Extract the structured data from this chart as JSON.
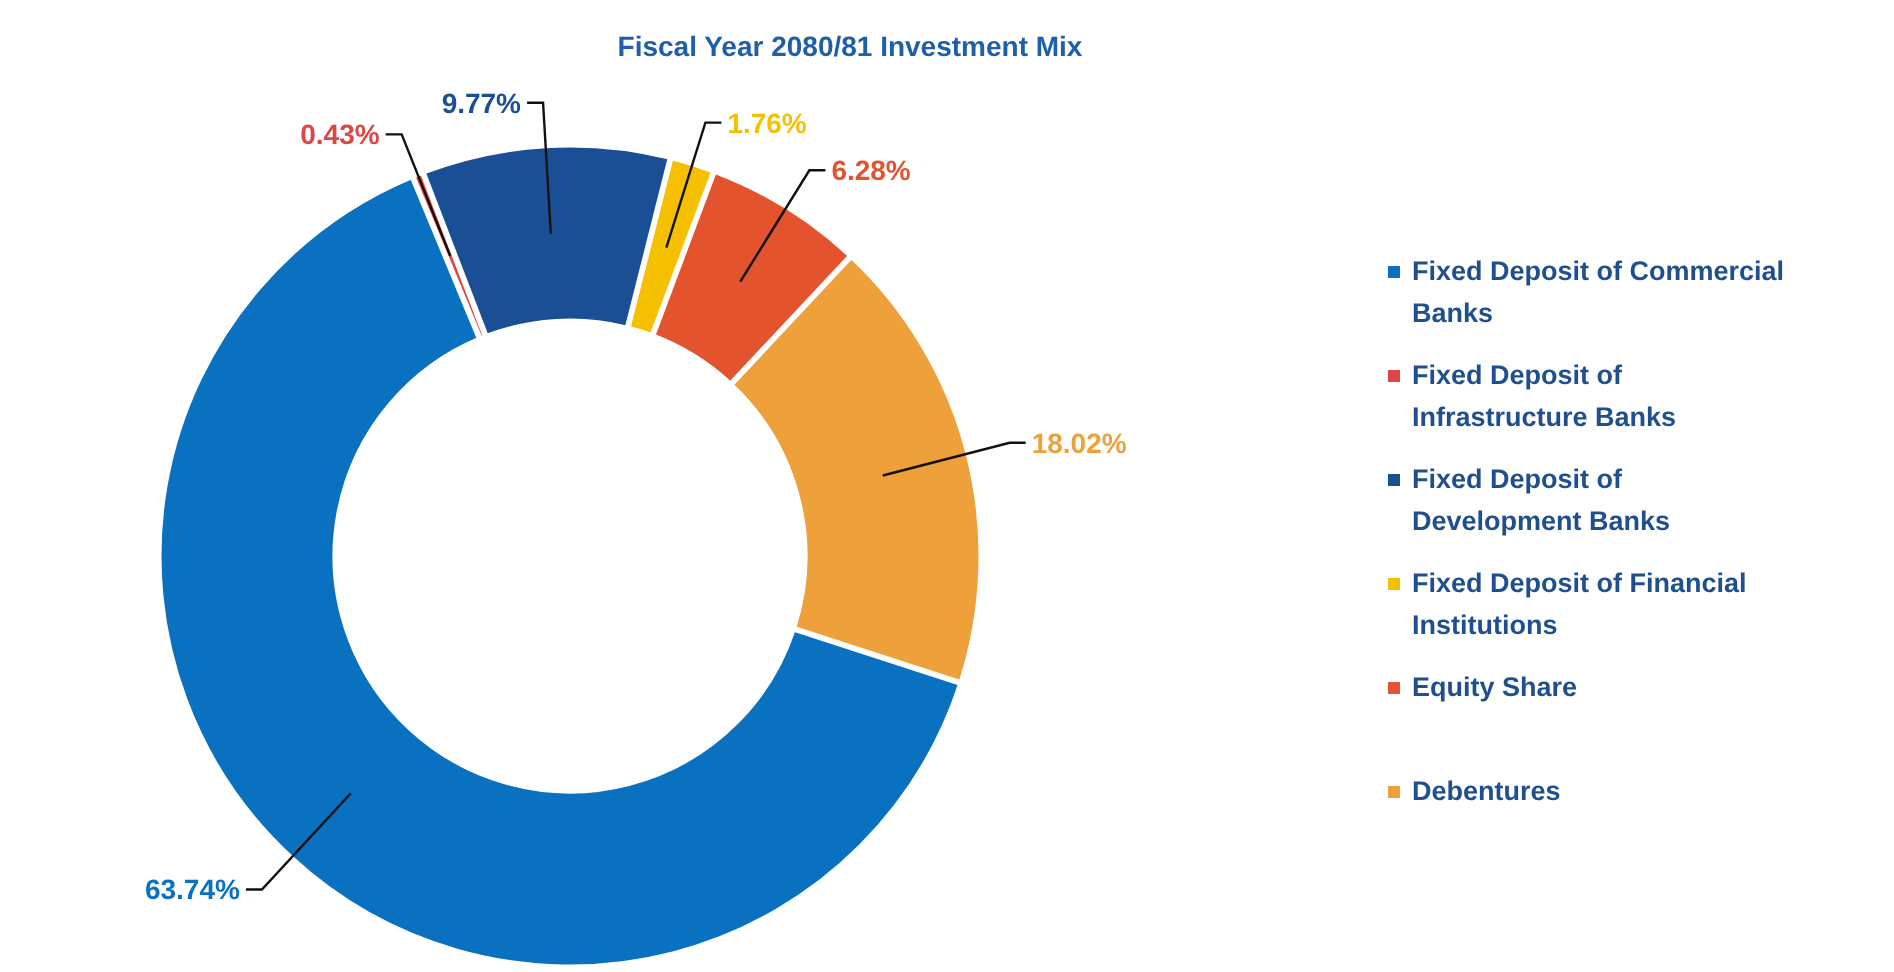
{
  "chart_data": {
    "type": "donut",
    "title": "Fiscal Year 2080/81 Investment Mix",
    "categories": [
      "Fixed Deposit of Commercial Banks",
      "Fixed Deposit of Infrastructure Banks",
      "Fixed Deposit of Development Banks",
      "Fixed Deposit of Financial Institutions",
      "Equity Share",
      "Debentures"
    ],
    "values": [
      63.74,
      0.43,
      9.77,
      1.76,
      6.28,
      18.02
    ],
    "value_labels": [
      "63.74%",
      "0.43%",
      "9.77%",
      "1.76%",
      "6.28%",
      "18.02%"
    ],
    "colors": [
      "#0a70c0",
      "#e04545",
      "#1a4f96",
      "#f5c000",
      "#e2532e",
      "#eea03a"
    ],
    "legend": "right"
  }
}
